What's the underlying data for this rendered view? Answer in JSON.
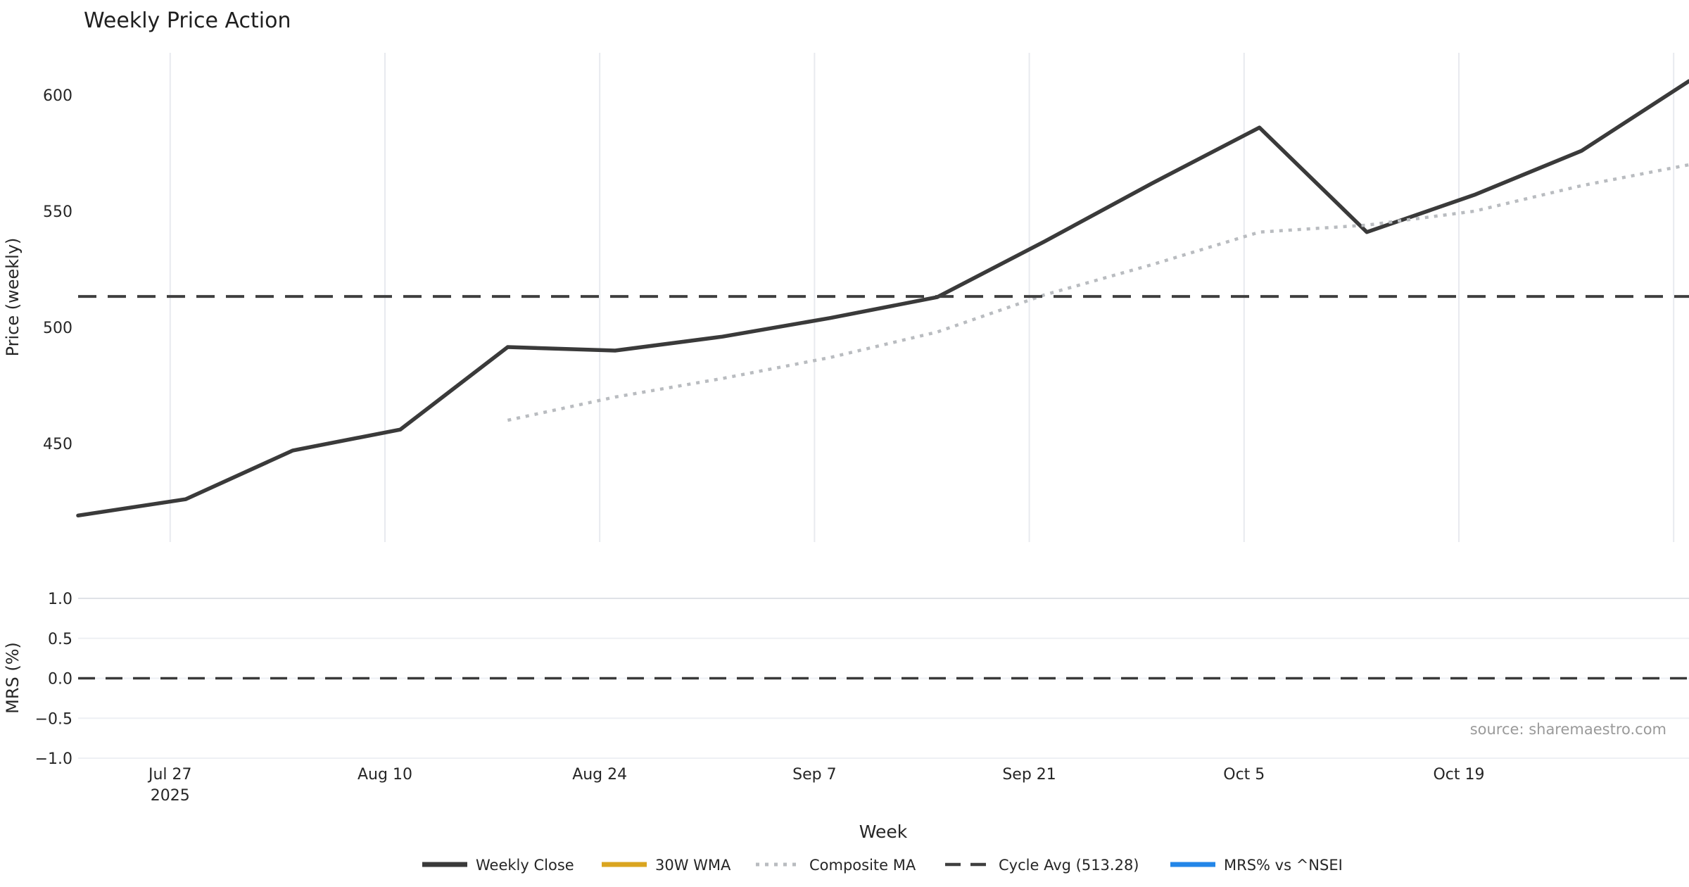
{
  "source_note": "source: sharemaestro.com",
  "chart_data": {
    "type": "line",
    "title": "Weekly Price Action",
    "xlabel": "Week",
    "x_weeks": [
      0,
      1,
      2,
      3,
      4,
      5,
      6,
      7,
      8,
      9,
      10,
      11,
      12,
      13,
      14,
      15
    ],
    "x_ticks": [
      {
        "pos": 0.857,
        "label": "Jul 27",
        "year": "2025"
      },
      {
        "pos": 2.857,
        "label": "Aug 10",
        "year": ""
      },
      {
        "pos": 4.857,
        "label": "Aug 24",
        "year": ""
      },
      {
        "pos": 6.857,
        "label": "Sep 7",
        "year": ""
      },
      {
        "pos": 8.857,
        "label": "Sep 21",
        "year": ""
      },
      {
        "pos": 10.857,
        "label": "Oct 5",
        "year": ""
      },
      {
        "pos": 12.857,
        "label": "Oct 19",
        "year": ""
      },
      {
        "pos": 14.857,
        "label": "",
        "year": ""
      }
    ],
    "panels": [
      {
        "ylabel": "Price (weekly)",
        "ylim": [
          408,
          618
        ],
        "yticks": [
          {
            "value": 450,
            "label": "450"
          },
          {
            "value": 500,
            "label": "500"
          },
          {
            "value": 550,
            "label": "550"
          },
          {
            "value": 600,
            "label": "600"
          }
        ],
        "grid": "vertical"
      },
      {
        "ylabel": "MRS (%)",
        "ylim": [
          -1.07,
          1.07
        ],
        "yticks": [
          {
            "value": 1.0,
            "label": "1.0"
          },
          {
            "value": 0.5,
            "label": "0.5"
          },
          {
            "value": 0.0,
            "label": "0.0"
          },
          {
            "value": -0.5,
            "label": "−0.5"
          },
          {
            "value": -1.0,
            "label": "−1.0"
          }
        ],
        "grid": "horizontal",
        "zero_line": 0.0
      }
    ],
    "series": [
      {
        "name": "Weekly Close",
        "panel": 0,
        "style": "solid",
        "color": "#3a3a3a",
        "width": 5.5,
        "values": [
          419,
          426,
          447,
          456,
          491.5,
          490,
          496,
          504,
          513,
          537,
          562,
          586,
          541,
          557,
          576,
          606
        ]
      },
      {
        "name": "30W WMA",
        "panel": 0,
        "style": "solid",
        "color": "#DAA520",
        "width": 7,
        "values": []
      },
      {
        "name": "Composite MA",
        "panel": 0,
        "style": "dotted",
        "color": "#b9bcc0",
        "width": 4.5,
        "values": [
          null,
          null,
          null,
          null,
          460,
          470,
          478,
          487,
          498,
          514,
          527,
          541,
          544,
          550,
          561,
          570
        ]
      },
      {
        "name": "Cycle Avg (513.28)",
        "panel": 0,
        "style": "dashed",
        "color": "#3f3f3f",
        "width": 4,
        "hline": 513.28
      },
      {
        "name": "MRS% vs ^NSEI",
        "panel": 1,
        "style": "solid",
        "color": "#2386e8",
        "width": 7,
        "values": []
      }
    ],
    "cycle_avg": 513.28,
    "legend": [
      {
        "label": "Weekly Close",
        "style": "solid",
        "color": "#3a3a3a"
      },
      {
        "label": "30W WMA",
        "style": "solid",
        "color": "#DAA520"
      },
      {
        "label": "Composite MA",
        "style": "dotted",
        "color": "#b9bcc0"
      },
      {
        "label": "Cycle Avg (513.28)",
        "style": "dashed",
        "color": "#3f3f3f"
      },
      {
        "label": "MRS% vs ^NSEI",
        "style": "solid",
        "color": "#2386e8"
      }
    ],
    "legend_position": "bottom-center",
    "grid_color": "#e8eaef",
    "grid_color_light": "#eef0f4",
    "grid_color_top": "#dfe2e7"
  }
}
